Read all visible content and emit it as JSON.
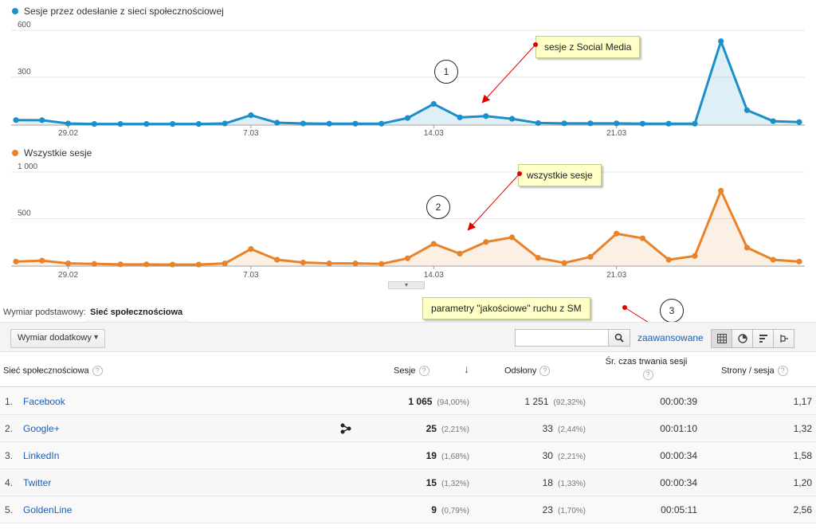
{
  "chart_data": [
    {
      "type": "area",
      "legend": "Sesje przez odesłanie z sieci społecznościowej",
      "color": "#1a8fc9",
      "ylim": [
        0,
        600
      ],
      "y_ticks": [
        "600",
        "300"
      ],
      "x_tick_labels": [
        "29.02",
        "7.03",
        "14.03",
        "21.03"
      ],
      "x": [
        "27.02",
        "28.02",
        "29.02",
        "1.03",
        "2.03",
        "3.03",
        "4.03",
        "5.03",
        "6.03",
        "7.03",
        "8.03",
        "9.03",
        "10.03",
        "11.03",
        "12.03",
        "13.03",
        "14.03",
        "15.03",
        "16.03",
        "17.03",
        "18.03",
        "19.03",
        "20.03",
        "21.03",
        "22.03",
        "23.03",
        "24.03",
        "25.03",
        "26.03",
        "27.03",
        "28.03"
      ],
      "values": [
        27,
        26,
        5,
        2,
        2,
        2,
        2,
        2,
        5,
        58,
        10,
        5,
        4,
        4,
        4,
        40,
        130,
        44,
        52,
        35,
        8,
        6,
        6,
        6,
        4,
        4,
        4,
        530,
        90,
        20,
        14
      ]
    },
    {
      "type": "area",
      "legend": "Wszystkie sesje",
      "color": "#e8832a",
      "ylim": [
        0,
        1000
      ],
      "y_ticks": [
        "1 000",
        "500"
      ],
      "x_tick_labels": [
        "29.02",
        "7.03",
        "14.03",
        "21.03"
      ],
      "x": [
        "27.02",
        "28.02",
        "29.02",
        "1.03",
        "2.03",
        "3.03",
        "4.03",
        "5.03",
        "6.03",
        "7.03",
        "8.03",
        "9.03",
        "10.03",
        "11.03",
        "12.03",
        "13.03",
        "14.03",
        "15.03",
        "16.03",
        "17.03",
        "18.03",
        "19.03",
        "20.03",
        "21.03",
        "22.03",
        "23.03",
        "24.03",
        "25.03",
        "26.03",
        "27.03",
        "28.03"
      ],
      "values": [
        40,
        50,
        20,
        15,
        10,
        10,
        8,
        8,
        20,
        175,
        60,
        30,
        20,
        20,
        15,
        75,
        230,
        125,
        250,
        300,
        80,
        25,
        90,
        340,
        290,
        60,
        100,
        800,
        190,
        60,
        40
      ]
    }
  ],
  "callouts": {
    "c1": "sesje z Social Media",
    "c2": "wszystkie sesje",
    "c3": "parametry \"jakościowe\" ruchu z SM",
    "m1": "1",
    "m2": "2",
    "m3": "3"
  },
  "dimension": {
    "label": "Wymiar podstawowy:",
    "value": "Sieć społecznościowa"
  },
  "toolbar": {
    "secondary_dimension": "Wymiar dodatkowy",
    "advanced_link": "zaawansowane",
    "search_placeholder": ""
  },
  "table": {
    "headers": {
      "network": "Sieć społecznościowa",
      "sessions": "Sesje",
      "pageviews": "Odsłony",
      "avg_duration": "Śr. czas trwania sesji",
      "pages_per_session": "Strony / sesja"
    },
    "rows": [
      {
        "idx": "1.",
        "name": "Facebook",
        "sessions": "1 065",
        "sessions_pct": "(94,00%)",
        "pageviews": "1 251",
        "pageviews_pct": "(92,32%)",
        "duration": "00:00:39",
        "pps": "1,17"
      },
      {
        "idx": "2.",
        "name": "Google+",
        "sessions": "25",
        "sessions_pct": "(2,21%)",
        "pageviews": "33",
        "pageviews_pct": "(2,44%)",
        "duration": "00:01:10",
        "pps": "1,32"
      },
      {
        "idx": "3.",
        "name": "LinkedIn",
        "sessions": "19",
        "sessions_pct": "(1,68%)",
        "pageviews": "30",
        "pageviews_pct": "(2,21%)",
        "duration": "00:00:34",
        "pps": "1,58"
      },
      {
        "idx": "4.",
        "name": "Twitter",
        "sessions": "15",
        "sessions_pct": "(1,32%)",
        "pageviews": "18",
        "pageviews_pct": "(1,33%)",
        "duration": "00:00:34",
        "pps": "1,20"
      },
      {
        "idx": "5.",
        "name": "GoldenLine",
        "sessions": "9",
        "sessions_pct": "(0,79%)",
        "pageviews": "23",
        "pageviews_pct": "(1,70%)",
        "duration": "00:05:11",
        "pps": "2,56"
      }
    ]
  }
}
